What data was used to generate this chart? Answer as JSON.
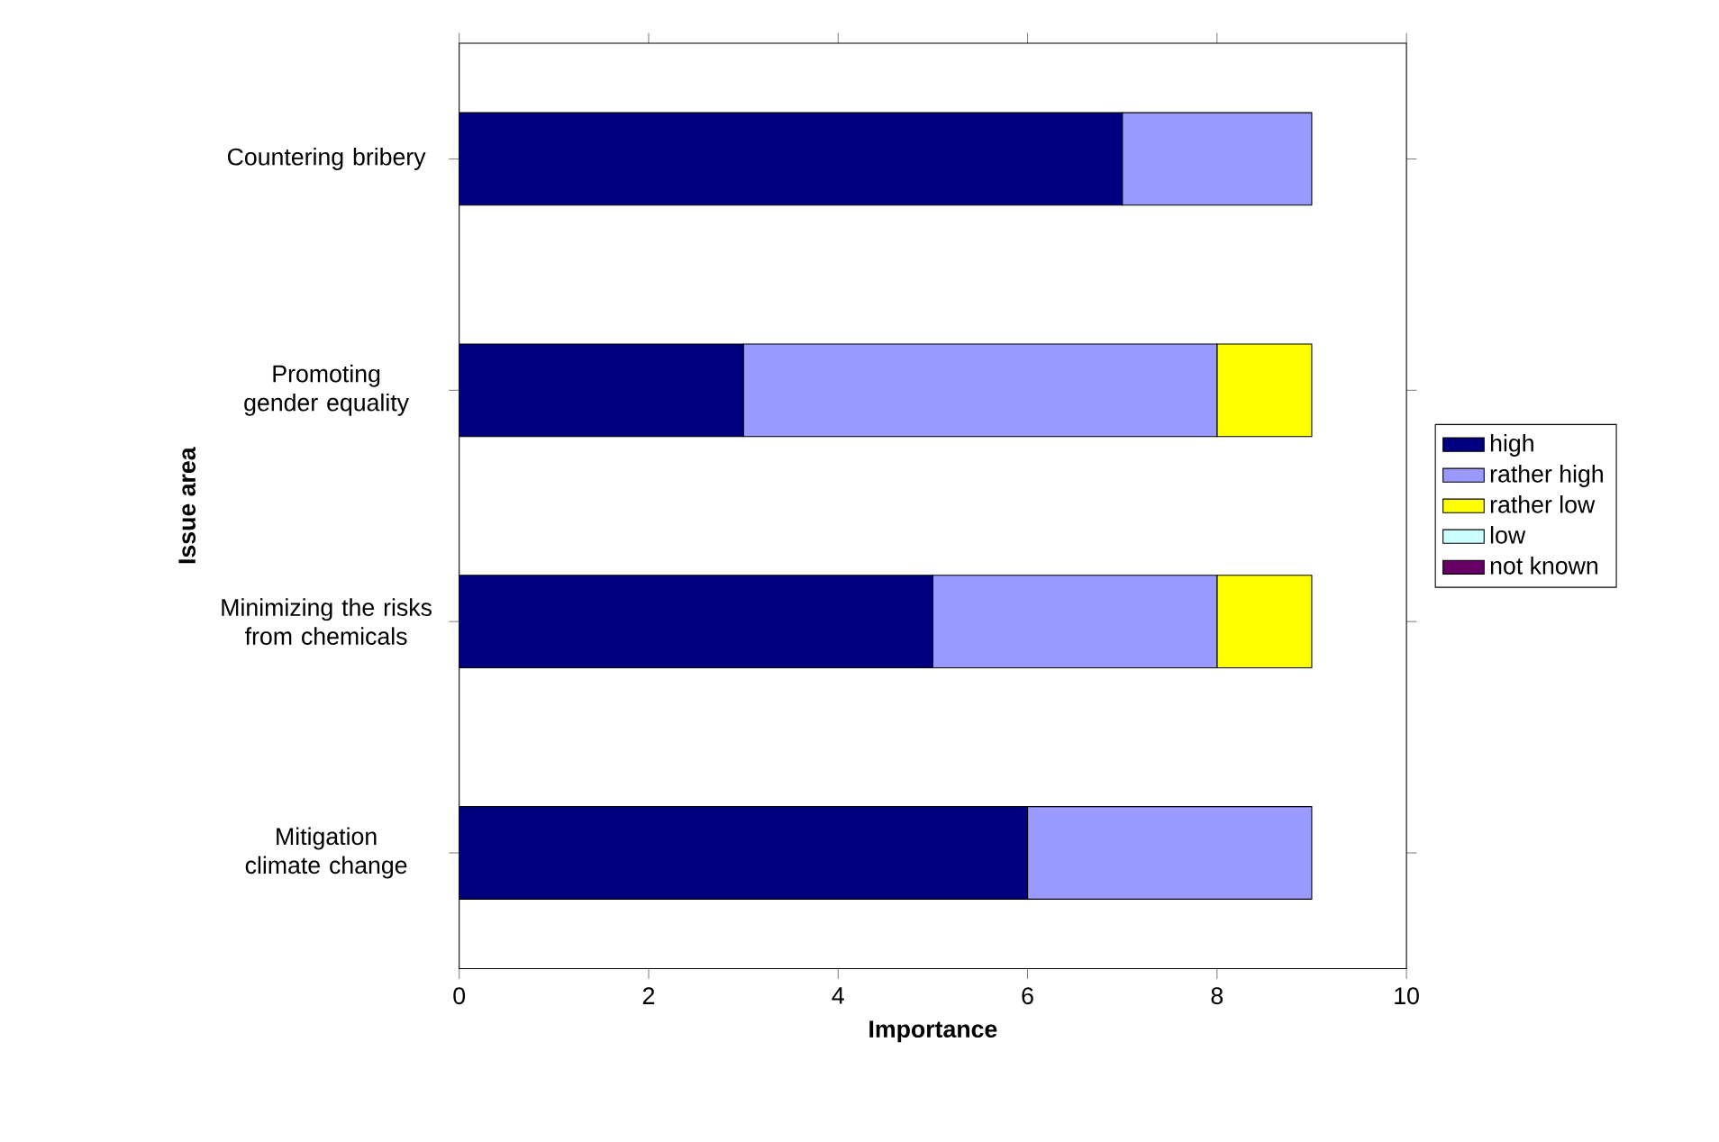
{
  "chart_data": {
    "type": "bar",
    "orientation": "horizontal",
    "stacked": true,
    "xlabel": "Importance",
    "ylabel": "Issue area",
    "categories": [
      "Countering bribery",
      "Promoting gender equality",
      "Minimizing the risks from chemicals",
      "Mitigation climate change"
    ],
    "series": [
      {
        "name": "high",
        "color": "#000080",
        "values": [
          7,
          3,
          5,
          6
        ]
      },
      {
        "name": "rather high",
        "color": "#9999ff",
        "values": [
          2,
          5,
          3,
          3
        ]
      },
      {
        "name": "rather low",
        "color": "#ffff00",
        "values": [
          0,
          1,
          1,
          0
        ]
      },
      {
        "name": "low",
        "color": "#ccffff",
        "values": [
          0,
          0,
          0,
          0
        ]
      },
      {
        "name": "not known",
        "color": "#660066",
        "values": [
          0,
          0,
          0,
          0
        ]
      }
    ],
    "xlim": [
      0,
      10
    ],
    "xticks": [
      0,
      2,
      4,
      6,
      8,
      10
    ],
    "legend": "right"
  }
}
